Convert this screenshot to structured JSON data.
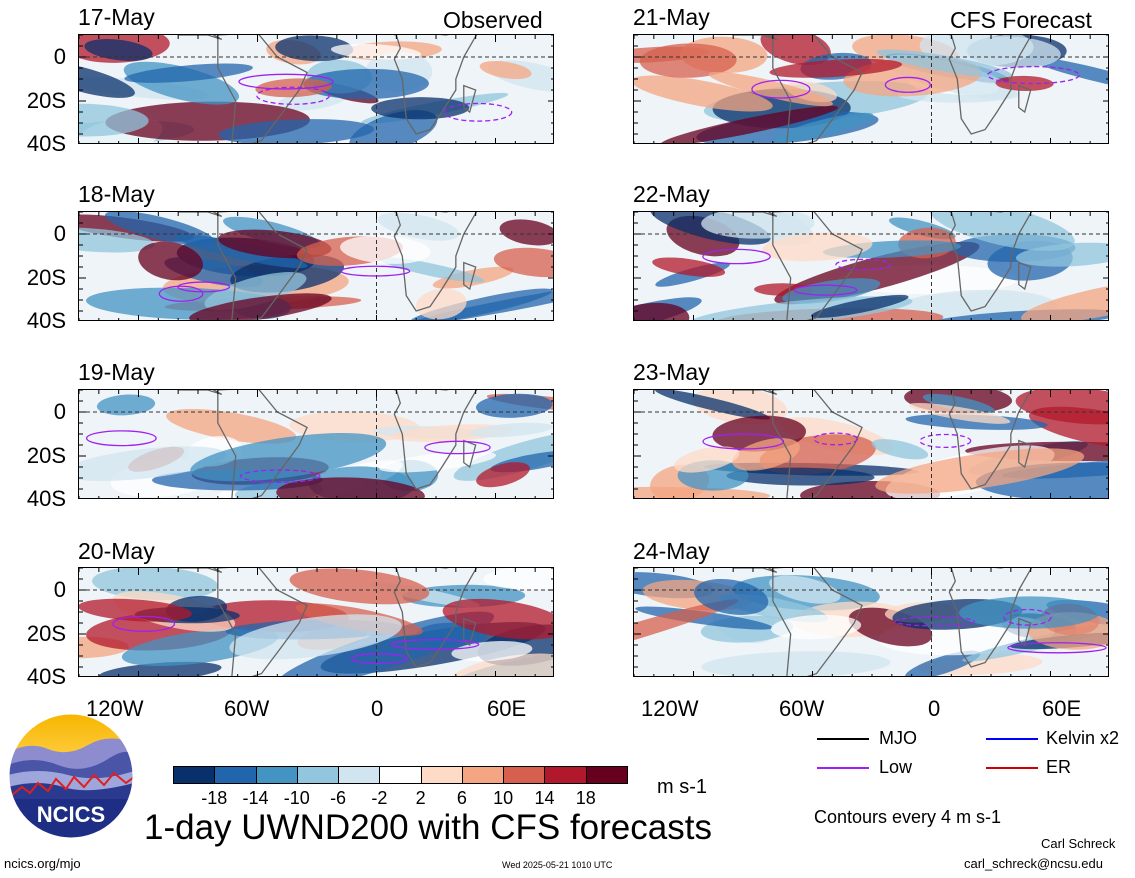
{
  "headers": {
    "observed": "Observed",
    "forecast": "CFS Forecast"
  },
  "panels": [
    {
      "date": "17-May"
    },
    {
      "date": "18-May"
    },
    {
      "date": "19-May"
    },
    {
      "date": "20-May"
    },
    {
      "date": "21-May"
    },
    {
      "date": "22-May"
    },
    {
      "date": "23-May"
    },
    {
      "date": "24-May"
    }
  ],
  "y_ticks": [
    "0",
    "20S",
    "40S"
  ],
  "x_ticks": [
    "120W",
    "60W",
    "0",
    "60E"
  ],
  "colorbar": {
    "colors": [
      "#08306b",
      "#2166ac",
      "#4393c3",
      "#92c5de",
      "#d1e5f0",
      "#ffffff",
      "#fddbc7",
      "#f4a582",
      "#d6604d",
      "#b2182b",
      "#67001f"
    ],
    "labels": [
      "-18",
      "-14",
      "-10",
      "-6",
      "-2",
      "2",
      "6",
      "10",
      "14",
      "18"
    ],
    "unit": "m s-1"
  },
  "legend": {
    "mjo": {
      "label": "MJO",
      "color": "#000000"
    },
    "kelvin": {
      "label": "Kelvin x2",
      "color": "#0000ff"
    },
    "low": {
      "label": "Low",
      "color": "#a020f0"
    },
    "er": {
      "label": "ER",
      "color": "#d00000"
    },
    "contours": "Contours every 4 m s-1"
  },
  "logo": {
    "text": "NCICS"
  },
  "title": "1-day UWND200 with CFS forecasts",
  "footer": {
    "url": "ncics.org/mjo",
    "timestamp": "Wed 2025-05-21 1010 UTC",
    "author": "Carl Schreck",
    "email": "carl_schreck@ncsu.edu"
  }
}
